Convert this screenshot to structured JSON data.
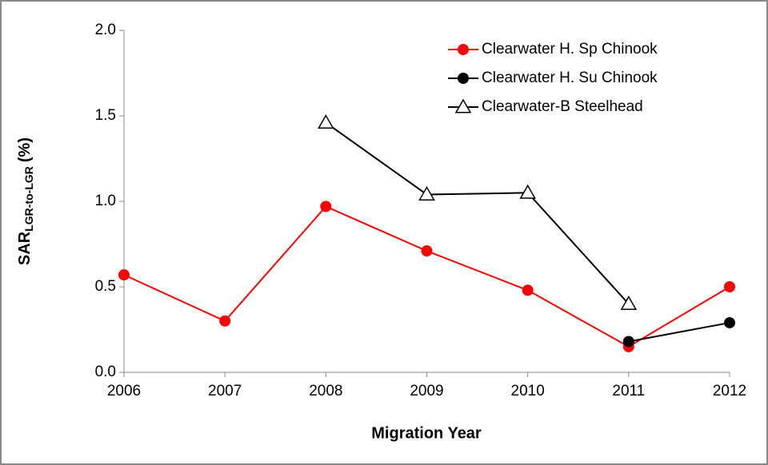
{
  "chart_data": {
    "type": "line",
    "x": [
      2006,
      2007,
      2008,
      2009,
      2010,
      2011,
      2012
    ],
    "xlabel": "Migration Year",
    "ylabel": [
      "SAR",
      "LGR-to-LGR",
      "(%)"
    ],
    "xlim": [
      2006,
      2012
    ],
    "xticks": [
      2006,
      2007,
      2008,
      2009,
      2010,
      2011,
      2012
    ],
    "ylim": [
      0,
      2
    ],
    "yticks": [
      {
        "value": 0,
        "label": "0.0"
      },
      0.5,
      {
        "value": 1,
        "label": "1.0"
      },
      1.5,
      {
        "value": 2,
        "label": "2.0"
      }
    ],
    "legend": "top-right",
    "series": [
      {
        "name": "Clearwater H. Sp Chinook",
        "color": "#ff0000",
        "marker": "circle",
        "values": [
          0.57,
          0.3,
          0.97,
          0.71,
          0.48,
          0.15,
          0.5
        ]
      },
      {
        "name": "Clearwater H. Su Chinook",
        "color": "#000000",
        "marker": "circle",
        "values": [
          null,
          null,
          null,
          null,
          null,
          0.18,
          0.29
        ]
      },
      {
        "name": "Clearwater-B Steelhead",
        "color": "#000000",
        "marker": "triangle",
        "values": [
          null,
          null,
          1.46,
          1.04,
          1.05,
          0.4,
          null
        ]
      }
    ]
  }
}
